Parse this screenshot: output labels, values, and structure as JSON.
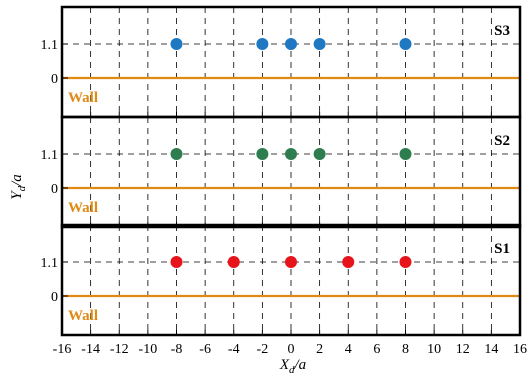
{
  "chart_data": {
    "type": "scatter",
    "xlabel_main": "X",
    "xlabel_sub": "d",
    "xlabel_tail": "/a",
    "ylabel_main": "Y",
    "ylabel_sub": "d",
    "ylabel_tail": "/a",
    "xlim": [
      -16,
      16
    ],
    "xticks": [
      -16,
      -14,
      -12,
      -10,
      -8,
      -6,
      -4,
      -2,
      0,
      2,
      4,
      6,
      8,
      10,
      12,
      14,
      16
    ],
    "xtick_labels": [
      "-16",
      "-14",
      "-12",
      "-10",
      "-8",
      "-6",
      "-4",
      "-2",
      "0",
      "2",
      "4",
      "6",
      "8",
      "10",
      "12",
      "14",
      "16"
    ],
    "grid": true,
    "panels": [
      {
        "label": "S3",
        "color": "#1f78c1",
        "ytick_labels": [
          "1.1",
          "0"
        ],
        "yticks": [
          1.1,
          0
        ],
        "wall": {
          "label": "Wall",
          "y": 0,
          "color": "#e08a14"
        },
        "points": {
          "x": [
            -8,
            -2,
            0,
            2,
            8
          ],
          "y": [
            1.1,
            1.1,
            1.1,
            1.1,
            1.1
          ]
        }
      },
      {
        "label": "S2",
        "color": "#2e7d4f",
        "ytick_labels": [
          "1.1",
          "0"
        ],
        "yticks": [
          1.1,
          0
        ],
        "wall": {
          "label": "Wall",
          "y": 0,
          "color": "#e08a14"
        },
        "points": {
          "x": [
            -8,
            -2,
            0,
            2,
            8
          ],
          "y": [
            1.1,
            1.1,
            1.1,
            1.1,
            1.1
          ]
        }
      },
      {
        "label": "S1",
        "color": "#e8141b",
        "ytick_labels": [
          "1.1",
          "0"
        ],
        "yticks": [
          1.1,
          0
        ],
        "wall": {
          "label": "Wall",
          "y": 0,
          "color": "#e08a14"
        },
        "points": {
          "x": [
            -8,
            -4,
            0,
            4,
            8
          ],
          "y": [
            1.1,
            1.1,
            1.1,
            1.1,
            1.1
          ]
        }
      }
    ]
  }
}
